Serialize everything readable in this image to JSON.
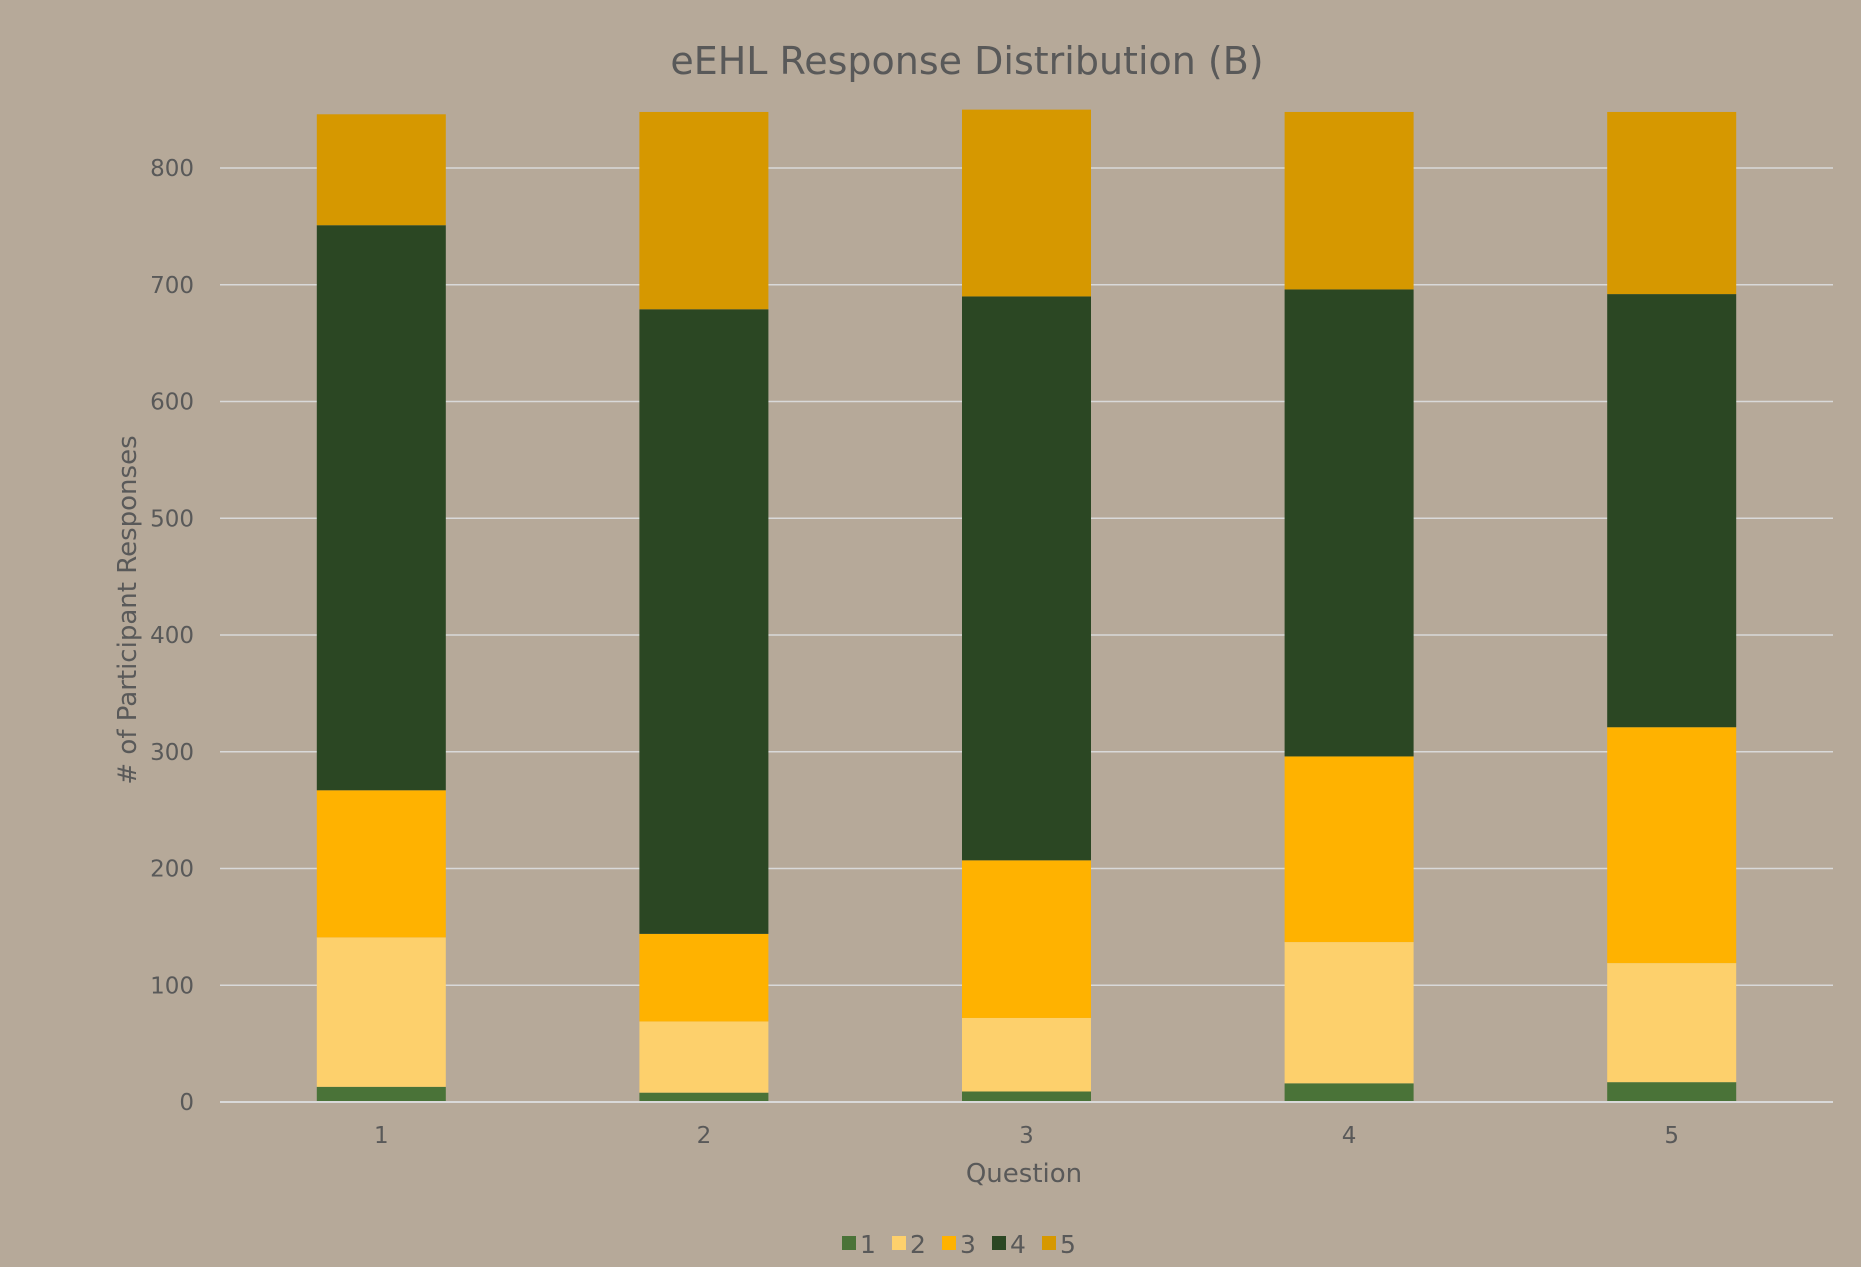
{
  "chart_data": {
    "type": "bar",
    "stacked": true,
    "title": "eEHL Response Distribution (B)",
    "xlabel": "Question",
    "ylabel": "# of Participant Responses",
    "categories": [
      "1",
      "2",
      "3",
      "4",
      "5"
    ],
    "series": [
      {
        "name": "1",
        "color": "#4a7338",
        "values": [
          13,
          8,
          9,
          16,
          17
        ]
      },
      {
        "name": "2",
        "color": "#fdd06c",
        "values": [
          128,
          61,
          63,
          121,
          102
        ]
      },
      {
        "name": "3",
        "color": "#ffb200",
        "values": [
          126,
          75,
          135,
          159,
          202
        ]
      },
      {
        "name": "4",
        "color": "#2b4723",
        "values": [
          484,
          535,
          483,
          400,
          371
        ]
      },
      {
        "name": "5",
        "color": "#d69800",
        "values": [
          95,
          169,
          160,
          152,
          156
        ]
      }
    ],
    "yticks": [
      0,
      100,
      200,
      300,
      400,
      500,
      600,
      700,
      800
    ],
    "ylim": [
      0,
      846
    ],
    "grid": true,
    "legend_position": "bottom"
  }
}
